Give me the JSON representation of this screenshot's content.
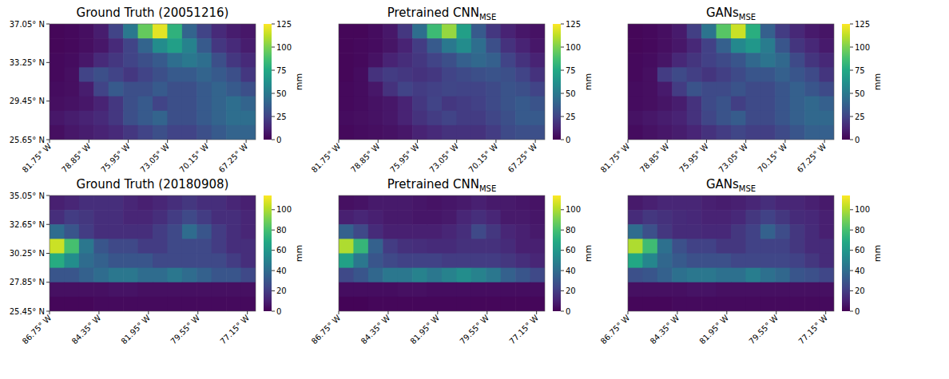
{
  "chart_data": [
    {
      "type": "heatmap",
      "title": "Ground Truth (20051216)",
      "color": "viridis",
      "xlim": [
        -81.75,
        -66.55
      ],
      "ylim": [
        25.65,
        37.05
      ],
      "xticks": [
        {
          "value": -81.75,
          "label": "81.75° W"
        },
        {
          "value": -78.85,
          "label": "78.85° W"
        },
        {
          "value": -75.95,
          "label": "75.95° W"
        },
        {
          "value": -73.05,
          "label": "73.05° W"
        },
        {
          "value": -70.15,
          "label": "70.15° W"
        },
        {
          "value": -67.25,
          "label": "67.25° W"
        }
      ],
      "yticks": [
        {
          "value": 25.65,
          "label": "25.65° N"
        },
        {
          "value": 29.45,
          "label": "29.45° N"
        },
        {
          "value": 33.25,
          "label": "33.25° N"
        },
        {
          "value": 37.05,
          "label": "37.05° N"
        }
      ],
      "colorbar_lim": [
        0,
        125
      ],
      "colorbar_ticks": [
        0,
        25,
        50,
        75,
        100,
        125
      ],
      "colorbar_label": "mm",
      "values": [
        [
          2,
          3,
          5,
          10,
          25,
          50,
          95,
          120,
          80,
          40,
          25,
          15,
          10,
          8
        ],
        [
          2,
          3,
          5,
          8,
          15,
          25,
          40,
          60,
          70,
          55,
          35,
          20,
          15,
          10
        ],
        [
          3,
          4,
          8,
          15,
          20,
          25,
          30,
          35,
          45,
          50,
          45,
          30,
          20,
          15
        ],
        [
          3,
          5,
          25,
          30,
          25,
          20,
          25,
          30,
          35,
          35,
          40,
          35,
          30,
          20
        ],
        [
          4,
          5,
          10,
          25,
          35,
          30,
          30,
          35,
          30,
          30,
          35,
          40,
          35,
          30
        ],
        [
          5,
          6,
          8,
          12,
          20,
          30,
          35,
          25,
          30,
          30,
          35,
          40,
          45,
          40
        ],
        [
          8,
          10,
          12,
          15,
          20,
          30,
          35,
          40,
          30,
          30,
          35,
          40,
          45,
          45
        ],
        [
          5,
          8,
          10,
          12,
          15,
          20,
          25,
          30,
          25,
          25,
          30,
          35,
          40,
          40
        ]
      ]
    },
    {
      "type": "heatmap",
      "title": "Pretrained CNN",
      "title_subscript": "MSE",
      "color": "viridis",
      "tick_labels": "x",
      "xlim": [
        -81.75,
        -66.55
      ],
      "ylim": [
        25.65,
        37.05
      ],
      "xticks": [
        {
          "value": -81.75,
          "label": "81.75° W"
        },
        {
          "value": -78.85,
          "label": "78.85° W"
        },
        {
          "value": -75.95,
          "label": "75.95° W"
        },
        {
          "value": -73.05,
          "label": "73.05° W"
        },
        {
          "value": -70.15,
          "label": "70.15° W"
        },
        {
          "value": -67.25,
          "label": "67.25° W"
        }
      ],
      "colorbar_lim": [
        0,
        125
      ],
      "colorbar_ticks": [
        0,
        25,
        50,
        75,
        100,
        125
      ],
      "colorbar_label": "mm",
      "values": [
        [
          2,
          2,
          4,
          8,
          20,
          45,
          85,
          105,
          70,
          35,
          20,
          12,
          8,
          6
        ],
        [
          2,
          3,
          4,
          7,
          12,
          22,
          35,
          50,
          60,
          45,
          30,
          18,
          12,
          8
        ],
        [
          2,
          3,
          6,
          12,
          16,
          20,
          25,
          30,
          38,
          42,
          38,
          25,
          18,
          12
        ],
        [
          2,
          4,
          18,
          22,
          20,
          18,
          20,
          25,
          28,
          30,
          32,
          30,
          25,
          18
        ],
        [
          3,
          4,
          8,
          18,
          25,
          22,
          24,
          26,
          25,
          25,
          28,
          32,
          30,
          25
        ],
        [
          3,
          4,
          6,
          8,
          12,
          20,
          25,
          20,
          22,
          24,
          28,
          32,
          35,
          32
        ],
        [
          4,
          5,
          6,
          8,
          12,
          18,
          22,
          25,
          22,
          22,
          26,
          30,
          35,
          35
        ],
        [
          3,
          4,
          5,
          6,
          8,
          12,
          15,
          18,
          18,
          18,
          22,
          28,
          30,
          30
        ]
      ]
    },
    {
      "type": "heatmap",
      "title": "GANs",
      "title_subscript": "MSE",
      "color": "viridis",
      "tick_labels": "x",
      "xlim": [
        -81.75,
        -66.55
      ],
      "ylim": [
        25.65,
        37.05
      ],
      "xticks": [
        {
          "value": -81.75,
          "label": "81.75° W"
        },
        {
          "value": -78.85,
          "label": "78.85° W"
        },
        {
          "value": -75.95,
          "label": "75.95° W"
        },
        {
          "value": -73.05,
          "label": "73.05° W"
        },
        {
          "value": -70.15,
          "label": "70.15° W"
        },
        {
          "value": -67.25,
          "label": "67.25° W"
        }
      ],
      "colorbar_lim": [
        0,
        125
      ],
      "colorbar_ticks": [
        0,
        25,
        50,
        75,
        100,
        125
      ],
      "colorbar_label": "mm",
      "values": [
        [
          2,
          3,
          5,
          9,
          23,
          48,
          92,
          115,
          78,
          38,
          22,
          14,
          9,
          7
        ],
        [
          2,
          3,
          5,
          8,
          14,
          24,
          38,
          58,
          66,
          52,
          33,
          19,
          14,
          9
        ],
        [
          3,
          4,
          7,
          14,
          19,
          24,
          28,
          33,
          42,
          48,
          42,
          28,
          19,
          14
        ],
        [
          3,
          5,
          22,
          28,
          23,
          19,
          23,
          28,
          33,
          33,
          38,
          33,
          28,
          19
        ],
        [
          4,
          5,
          9,
          22,
          32,
          28,
          28,
          32,
          28,
          28,
          33,
          38,
          33,
          28
        ],
        [
          4,
          5,
          7,
          10,
          18,
          28,
          32,
          23,
          28,
          28,
          33,
          38,
          42,
          38
        ],
        [
          6,
          8,
          10,
          12,
          18,
          26,
          32,
          36,
          28,
          28,
          33,
          38,
          42,
          42
        ],
        [
          4,
          6,
          8,
          10,
          13,
          18,
          22,
          26,
          23,
          23,
          28,
          33,
          38,
          38
        ]
      ]
    },
    {
      "type": "heatmap",
      "title": "Ground Truth (20180908)",
      "color": "viridis",
      "xlim": [
        -86.75,
        -76.75
      ],
      "ylim": [
        25.45,
        35.05
      ],
      "xticks": [
        {
          "value": -86.75,
          "label": "86.75° W"
        },
        {
          "value": -84.35,
          "label": "84.35° W"
        },
        {
          "value": -81.95,
          "label": "81.95° W"
        },
        {
          "value": -79.55,
          "label": "79.55° W"
        },
        {
          "value": -77.15,
          "label": "77.15° W"
        }
      ],
      "yticks": [
        {
          "value": 25.45,
          "label": "25.45° N"
        },
        {
          "value": 27.85,
          "label": "27.85° N"
        },
        {
          "value": 30.25,
          "label": "30.25° N"
        },
        {
          "value": 32.65,
          "label": "32.65° N"
        },
        {
          "value": 35.05,
          "label": "35.05° N"
        }
      ],
      "colorbar_lim": [
        0,
        114
      ],
      "colorbar_ticks": [
        0,
        20,
        40,
        60,
        80,
        100
      ],
      "colorbar_label": "mm",
      "values": [
        [
          10,
          12,
          15,
          15,
          15,
          12,
          10,
          12,
          15,
          18,
          15,
          15,
          12,
          10
        ],
        [
          15,
          20,
          18,
          15,
          15,
          12,
          12,
          15,
          20,
          25,
          20,
          15,
          15,
          12
        ],
        [
          40,
          30,
          20,
          15,
          15,
          15,
          15,
          20,
          25,
          40,
          30,
          20,
          15,
          12
        ],
        [
          105,
          80,
          45,
          30,
          25,
          25,
          20,
          20,
          25,
          25,
          25,
          20,
          15,
          15
        ],
        [
          70,
          55,
          40,
          35,
          30,
          30,
          30,
          25,
          25,
          25,
          25,
          25,
          20,
          15
        ],
        [
          30,
          30,
          35,
          40,
          45,
          45,
          40,
          40,
          45,
          40,
          35,
          30,
          30,
          25
        ],
        [
          5,
          5,
          5,
          5,
          6,
          6,
          5,
          5,
          5,
          5,
          5,
          5,
          5,
          5
        ],
        [
          2,
          2,
          2,
          3,
          3,
          3,
          3,
          3,
          3,
          3,
          3,
          3,
          3,
          3
        ]
      ]
    },
    {
      "type": "heatmap",
      "title": "Pretrained CNN",
      "title_subscript": "MSE",
      "color": "viridis",
      "tick_labels": "x",
      "xlim": [
        -86.75,
        -76.75
      ],
      "ylim": [
        25.45,
        35.05
      ],
      "xticks": [
        {
          "value": -86.75,
          "label": "86.75° W"
        },
        {
          "value": -84.35,
          "label": "84.35° W"
        },
        {
          "value": -81.95,
          "label": "81.95° W"
        },
        {
          "value": -79.55,
          "label": "79.55° W"
        },
        {
          "value": -77.15,
          "label": "77.15° W"
        }
      ],
      "colorbar_lim": [
        0,
        114
      ],
      "colorbar_ticks": [
        0,
        20,
        40,
        60,
        80,
        100
      ],
      "colorbar_label": "mm",
      "values": [
        [
          5,
          6,
          8,
          8,
          8,
          7,
          6,
          7,
          8,
          10,
          8,
          8,
          7,
          6
        ],
        [
          10,
          12,
          10,
          8,
          8,
          7,
          7,
          8,
          12,
          15,
          12,
          8,
          8,
          7
        ],
        [
          35,
          25,
          14,
          10,
          10,
          10,
          10,
          12,
          15,
          25,
          18,
          12,
          10,
          8
        ],
        [
          100,
          75,
          35,
          20,
          16,
          15,
          14,
          14,
          16,
          16,
          16,
          14,
          10,
          10
        ],
        [
          65,
          45,
          30,
          25,
          22,
          22,
          22,
          20,
          20,
          20,
          20,
          18,
          15,
          12
        ],
        [
          25,
          30,
          38,
          45,
          45,
          50,
          45,
          50,
          55,
          50,
          45,
          35,
          30,
          25
        ],
        [
          4,
          4,
          4,
          4,
          5,
          5,
          4,
          4,
          4,
          4,
          4,
          4,
          4,
          4
        ],
        [
          1,
          1,
          2,
          2,
          2,
          2,
          2,
          2,
          2,
          2,
          2,
          2,
          2,
          2
        ]
      ]
    },
    {
      "type": "heatmap",
      "title": "GANs",
      "title_subscript": "MSE",
      "color": "viridis",
      "tick_labels": "x",
      "xlim": [
        -86.75,
        -76.75
      ],
      "ylim": [
        25.45,
        35.05
      ],
      "xticks": [
        {
          "value": -86.75,
          "label": "86.75° W"
        },
        {
          "value": -84.35,
          "label": "84.35° W"
        },
        {
          "value": -81.95,
          "label": "81.95° W"
        },
        {
          "value": -79.55,
          "label": "79.55° W"
        },
        {
          "value": -77.15,
          "label": "77.15° W"
        }
      ],
      "colorbar_lim": [
        0,
        114
      ],
      "colorbar_ticks": [
        0,
        20,
        40,
        60,
        80,
        100
      ],
      "colorbar_label": "mm",
      "values": [
        [
          8,
          10,
          12,
          12,
          12,
          10,
          9,
          10,
          12,
          15,
          12,
          12,
          10,
          8
        ],
        [
          14,
          18,
          16,
          14,
          13,
          11,
          11,
          13,
          18,
          22,
          18,
          14,
          13,
          10
        ],
        [
          40,
          28,
          18,
          14,
          14,
          13,
          13,
          18,
          22,
          35,
          26,
          18,
          14,
          10
        ],
        [
          100,
          78,
          42,
          28,
          22,
          22,
          18,
          18,
          22,
          22,
          22,
          18,
          14,
          14
        ],
        [
          68,
          52,
          38,
          32,
          28,
          28,
          28,
          24,
          24,
          24,
          24,
          22,
          18,
          14
        ],
        [
          28,
          30,
          35,
          42,
          45,
          45,
          42,
          42,
          48,
          42,
          38,
          30,
          28,
          24
        ],
        [
          5,
          5,
          5,
          5,
          6,
          6,
          5,
          5,
          5,
          5,
          5,
          5,
          5,
          5
        ],
        [
          2,
          2,
          2,
          3,
          3,
          3,
          3,
          3,
          3,
          3,
          3,
          3,
          3,
          3
        ]
      ]
    }
  ]
}
